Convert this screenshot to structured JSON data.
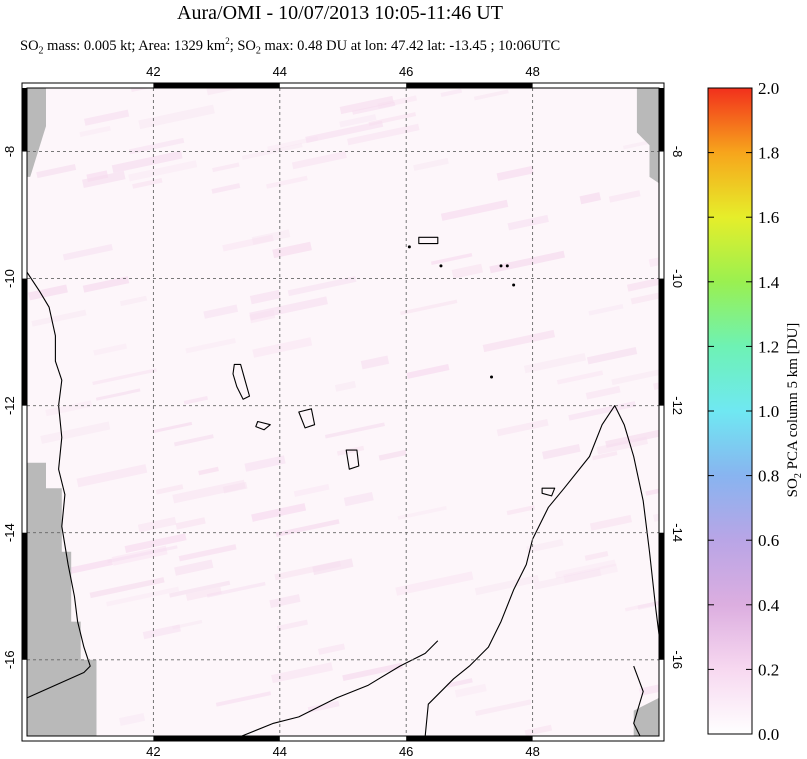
{
  "header": {
    "title": "Aura/OMI - 10/07/2013 10:05-11:46 UT",
    "subtitle_parts": {
      "p1": "SO",
      "p1_sub": "2",
      "p2": " mass: 0.005 kt; Area: 1329 km",
      "p2_sup": "2",
      "p3": "; SO",
      "p3_sub": "2",
      "p4": " max: 0.48 DU at lon: 47.42 lat: -13.45 ; 10:06UTC"
    }
  },
  "chart_data": {
    "type": "heatmap",
    "title": "Aura/OMI - 10/07/2013 10:05-11:46 UT",
    "xlim": [
      40.0,
      50.0
    ],
    "ylim": [
      -17.2,
      -7.0
    ],
    "x_ticks": [
      42,
      44,
      46,
      48
    ],
    "x_tick_labels": [
      "42",
      "44",
      "46",
      "48"
    ],
    "y_ticks": [
      -8,
      -10,
      -12,
      -14,
      -16
    ],
    "y_tick_labels": [
      "-8",
      "-10",
      "-12",
      "-14",
      "-16"
    ],
    "grid": true,
    "colorbar": {
      "label": "SO2 PCA column 5 km [DU]",
      "label_sub_main": "SO",
      "label_sub": "2",
      "label_rest": " PCA column 5 km [DU]",
      "min": 0.0,
      "max": 2.0,
      "ticks": [
        0.0,
        0.2,
        0.4,
        0.6,
        0.8,
        1.0,
        1.2,
        1.4,
        1.6,
        1.8,
        2.0
      ],
      "tick_labels": [
        "0.0",
        "0.2",
        "0.4",
        "0.6",
        "0.8",
        "1.0",
        "1.2",
        "1.4",
        "1.6",
        "1.8",
        "2.0"
      ],
      "colors": [
        "#ffffff",
        "#f7d8f0",
        "#dcaee0",
        "#b9a5e6",
        "#88b4f0",
        "#6fe8f2",
        "#6ef2b4",
        "#9af050",
        "#e6ee2a",
        "#f7a51c",
        "#f2301c"
      ]
    },
    "max_point": {
      "lon": 47.42,
      "lat": -13.45,
      "value": 0.48
    },
    "colors": {
      "no_data": "#b9b9b9",
      "background_low": "#fdf6fa",
      "streak": "#f6dcef",
      "coast": "#000000"
    }
  }
}
